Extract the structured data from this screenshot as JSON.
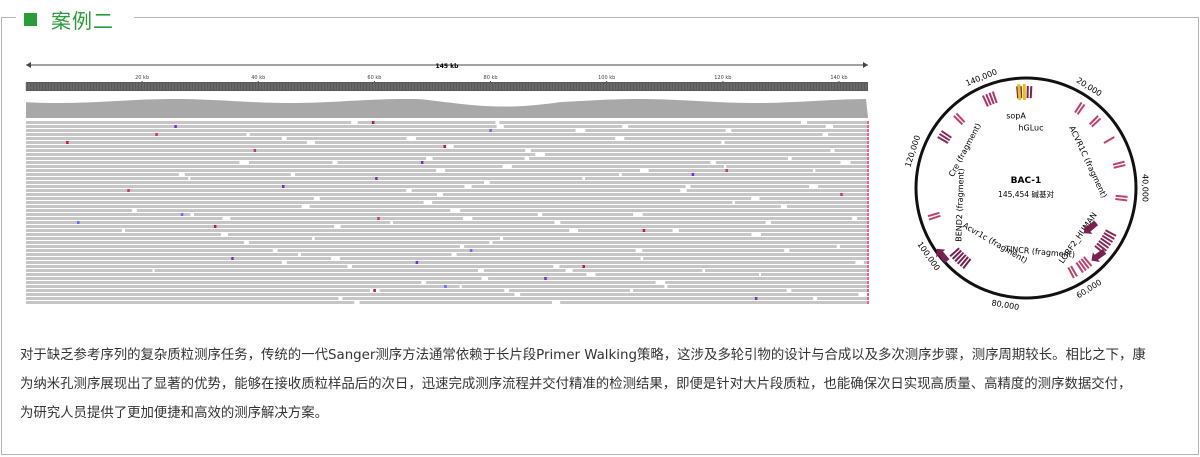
{
  "header": {
    "title": "案例二"
  },
  "browser": {
    "length_label": "145 kb",
    "ruler_ticks": [
      "20 kb",
      "40 kb",
      "60 kb",
      "80 kb",
      "100 kb",
      "120 kb",
      "140 kb"
    ]
  },
  "plasmid": {
    "name": "BAC-1",
    "size_label": "145,454 碱基对",
    "position_labels": [
      "140,000",
      "20,000",
      "40,000",
      "60,000",
      "80,000",
      "100,000",
      "120,000"
    ],
    "features": [
      "sopA",
      "hGLuc",
      "ACVR1C (fragment)",
      "Cre (fragment)",
      "BEND2 (fragment)",
      "Acvr1c (fragment)",
      "TINCR (fragment)",
      "LORF2_HUMAN"
    ]
  },
  "body": {
    "lines": [
      "对于缺乏参考序列的复杂质粒测序任务，传统的一代Sanger测序方法通常依赖于长片段Primer Walking策略，这涉及多轮引物的设计与合成以及多次测序步骤，测序周期较长。相比之下，康",
      "为纳米孔测序展现出了显著的优势，能够在接收质粒样品后的次日，迅速完成测序流程并交付精准的检测结果，即便是针对大片段质粒，也能确保次日实现高质量、高精度的测序数据交付，",
      "为研究人员提供了更加便捷和高效的测序解决方案。"
    ]
  }
}
